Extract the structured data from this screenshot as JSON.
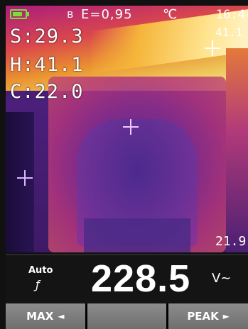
{
  "status_bar": {
    "bluetooth_icon": "bluetooth-icon",
    "emissivity": "E=0,95",
    "unit": "℃",
    "time": "16:4("
  },
  "readouts": {
    "spot": "S:29.3",
    "high": "H:41.1",
    "cold": "C:22.0",
    "max_corner": "41.1",
    "min_corner": "21.9"
  },
  "battery": {
    "level": 0.8,
    "color": "#7cdc3a"
  },
  "meter": {
    "range_mode": "Auto",
    "range_symbol": "ƒ",
    "value": "228.5",
    "unit": "V~"
  },
  "softkeys": [
    {
      "label": "MAX",
      "arrow": "◄"
    },
    {
      "label": "",
      "arrow": ""
    },
    {
      "label": "PEAK",
      "arrow": "►"
    }
  ],
  "colors": {
    "crosshair_hot": "#ffffff",
    "crosshair_center": "#f0c0ff",
    "crosshair_cold": "#e0c0ff"
  }
}
